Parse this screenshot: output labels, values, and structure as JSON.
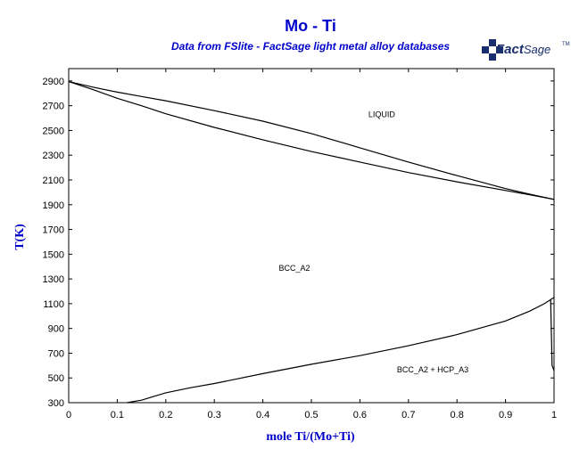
{
  "logo": {
    "text_bold": "Fact",
    "text_regular": "Sage",
    "trademark": "TM",
    "color": "#1a2f6e"
  },
  "colors": {
    "title": "#0000cc",
    "curves": "#000000",
    "axes": "#000000"
  },
  "chart_data": {
    "type": "line",
    "title": "Mo - Ti",
    "subtitle": "Data from FSlite - FactSage light metal alloy databases",
    "xlabel": "mole Ti/(Mo+Ti)",
    "ylabel": "T(K)",
    "xlim": [
      0,
      1
    ],
    "ylim": [
      300,
      3000
    ],
    "x_ticks": [
      0,
      0.1,
      0.2,
      0.3,
      0.4,
      0.5,
      0.6,
      0.7,
      0.8,
      0.9,
      1
    ],
    "x_tick_labels": [
      "0",
      "0.1",
      "0.2",
      "0.3",
      "0.4",
      "0.5",
      "0.6",
      "0.7",
      "0.8",
      "0.9",
      "1"
    ],
    "y_ticks": [
      300,
      500,
      700,
      900,
      1100,
      1300,
      1500,
      1700,
      1900,
      2100,
      2300,
      2500,
      2700,
      2900
    ],
    "y_tick_labels": [
      "300",
      "500",
      "700",
      "900",
      "1100",
      "1300",
      "1500",
      "1700",
      "1900",
      "2100",
      "2300",
      "2500",
      "2700",
      "2900"
    ],
    "grid": false,
    "series": [
      {
        "id": "liquidus",
        "x": [
          0,
          0.05,
          0.1,
          0.15,
          0.2,
          0.3,
          0.4,
          0.5,
          0.6,
          0.7,
          0.8,
          0.9,
          0.95,
          1
        ],
        "y": [
          2895,
          2850,
          2810,
          2775,
          2740,
          2660,
          2575,
          2475,
          2360,
          2245,
          2135,
          2030,
          1985,
          1943
        ]
      },
      {
        "id": "solidus",
        "x": [
          0,
          0.05,
          0.1,
          0.15,
          0.2,
          0.3,
          0.4,
          0.5,
          0.6,
          0.7,
          0.8,
          0.9,
          0.95,
          1
        ],
        "y": [
          2895,
          2830,
          2760,
          2700,
          2635,
          2525,
          2425,
          2330,
          2245,
          2160,
          2085,
          2015,
          1980,
          1943
        ]
      },
      {
        "id": "bcc-hcp-boundary",
        "x": [
          0.12,
          0.15,
          0.2,
          0.25,
          0.3,
          0.4,
          0.5,
          0.6,
          0.7,
          0.8,
          0.9,
          0.95,
          0.98,
          1
        ],
        "y": [
          290,
          320,
          380,
          420,
          455,
          535,
          610,
          680,
          760,
          850,
          960,
          1040,
          1100,
          1150
        ]
      },
      {
        "id": "hcp-boundary-ti-edge",
        "x": [
          0.993,
          0.996,
          1
        ],
        "y": [
          1130,
          600,
          560
        ]
      }
    ],
    "annotations": [
      {
        "text": "LIQUID",
        "x": 0.645,
        "y": 2608
      },
      {
        "text": "BCC_A2",
        "x": 0.465,
        "y": 1366
      },
      {
        "text": "BCC_A2 + HCP_A3",
        "x": 0.75,
        "y": 545
      }
    ]
  }
}
